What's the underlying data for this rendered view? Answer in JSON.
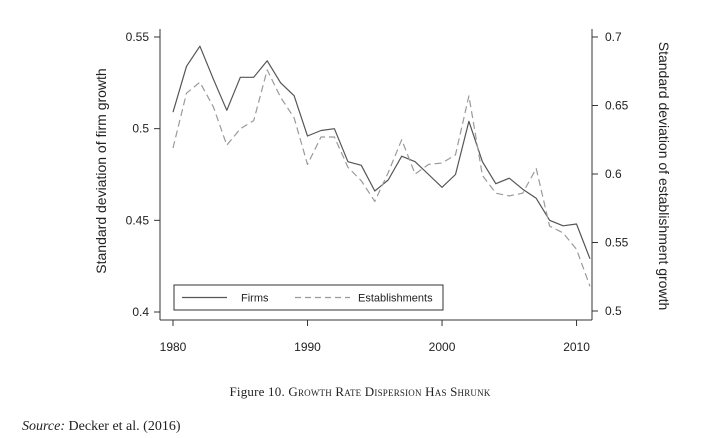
{
  "chart_data": {
    "type": "line",
    "x": [
      1980,
      1981,
      1982,
      1983,
      1984,
      1985,
      1986,
      1987,
      1988,
      1989,
      1990,
      1991,
      1992,
      1993,
      1994,
      1995,
      1996,
      1997,
      1998,
      1999,
      2000,
      2001,
      2002,
      2003,
      2004,
      2005,
      2006,
      2007,
      2008,
      2009,
      2010,
      2011
    ],
    "series": [
      {
        "name": "Firms",
        "axis": "left",
        "style": "solid",
        "color": "#555555",
        "values": [
          0.509,
          0.534,
          0.545,
          0.527,
          0.51,
          0.528,
          0.528,
          0.537,
          0.525,
          0.518,
          0.496,
          0.499,
          0.5,
          0.482,
          0.48,
          0.466,
          0.472,
          0.485,
          0.482,
          0.475,
          0.468,
          0.475,
          0.504,
          0.482,
          0.47,
          0.473,
          0.467,
          0.462,
          0.45,
          0.447,
          0.448,
          0.429
        ]
      },
      {
        "name": "Establishments",
        "axis": "right",
        "style": "dashed",
        "color": "#9a9a9a",
        "values": [
          0.619,
          0.659,
          0.667,
          0.649,
          0.621,
          0.633,
          0.639,
          0.676,
          0.656,
          0.641,
          0.607,
          0.627,
          0.627,
          0.605,
          0.595,
          0.58,
          0.601,
          0.625,
          0.6,
          0.607,
          0.608,
          0.614,
          0.657,
          0.599,
          0.586,
          0.584,
          0.586,
          0.604,
          0.562,
          0.557,
          0.545,
          0.518
        ]
      }
    ],
    "ylabel": "Standard deviation of firm growth",
    "ylabel_right": "Standard deviation of establishment growth",
    "xlim": [
      1980,
      2011
    ],
    "ylim": [
      0.4,
      0.55
    ],
    "ylim_right": [
      0.5,
      0.7
    ],
    "xticks": [
      1980,
      1990,
      2000,
      2010
    ],
    "xtick_labels": [
      "1980",
      "1990",
      "2000",
      "2010"
    ],
    "yticks_left": [
      0.4,
      0.45,
      0.5,
      0.55
    ],
    "yticks_left_labels": [
      "0.4",
      "0.45",
      "0.5",
      "0.55"
    ],
    "yticks_right": [
      0.5,
      0.55,
      0.6,
      0.65,
      0.7
    ],
    "yticks_right_labels": [
      "0.5",
      "0.55",
      "0.6",
      "0.65",
      "0.7"
    ],
    "grid": false,
    "legend_position": "bottom-left"
  },
  "caption": {
    "number": "Figure 10.",
    "title": "Growth Rate Dispersion Has Shrunk"
  },
  "source": {
    "label": "Source:",
    "text": "Decker et al. (2016)"
  }
}
